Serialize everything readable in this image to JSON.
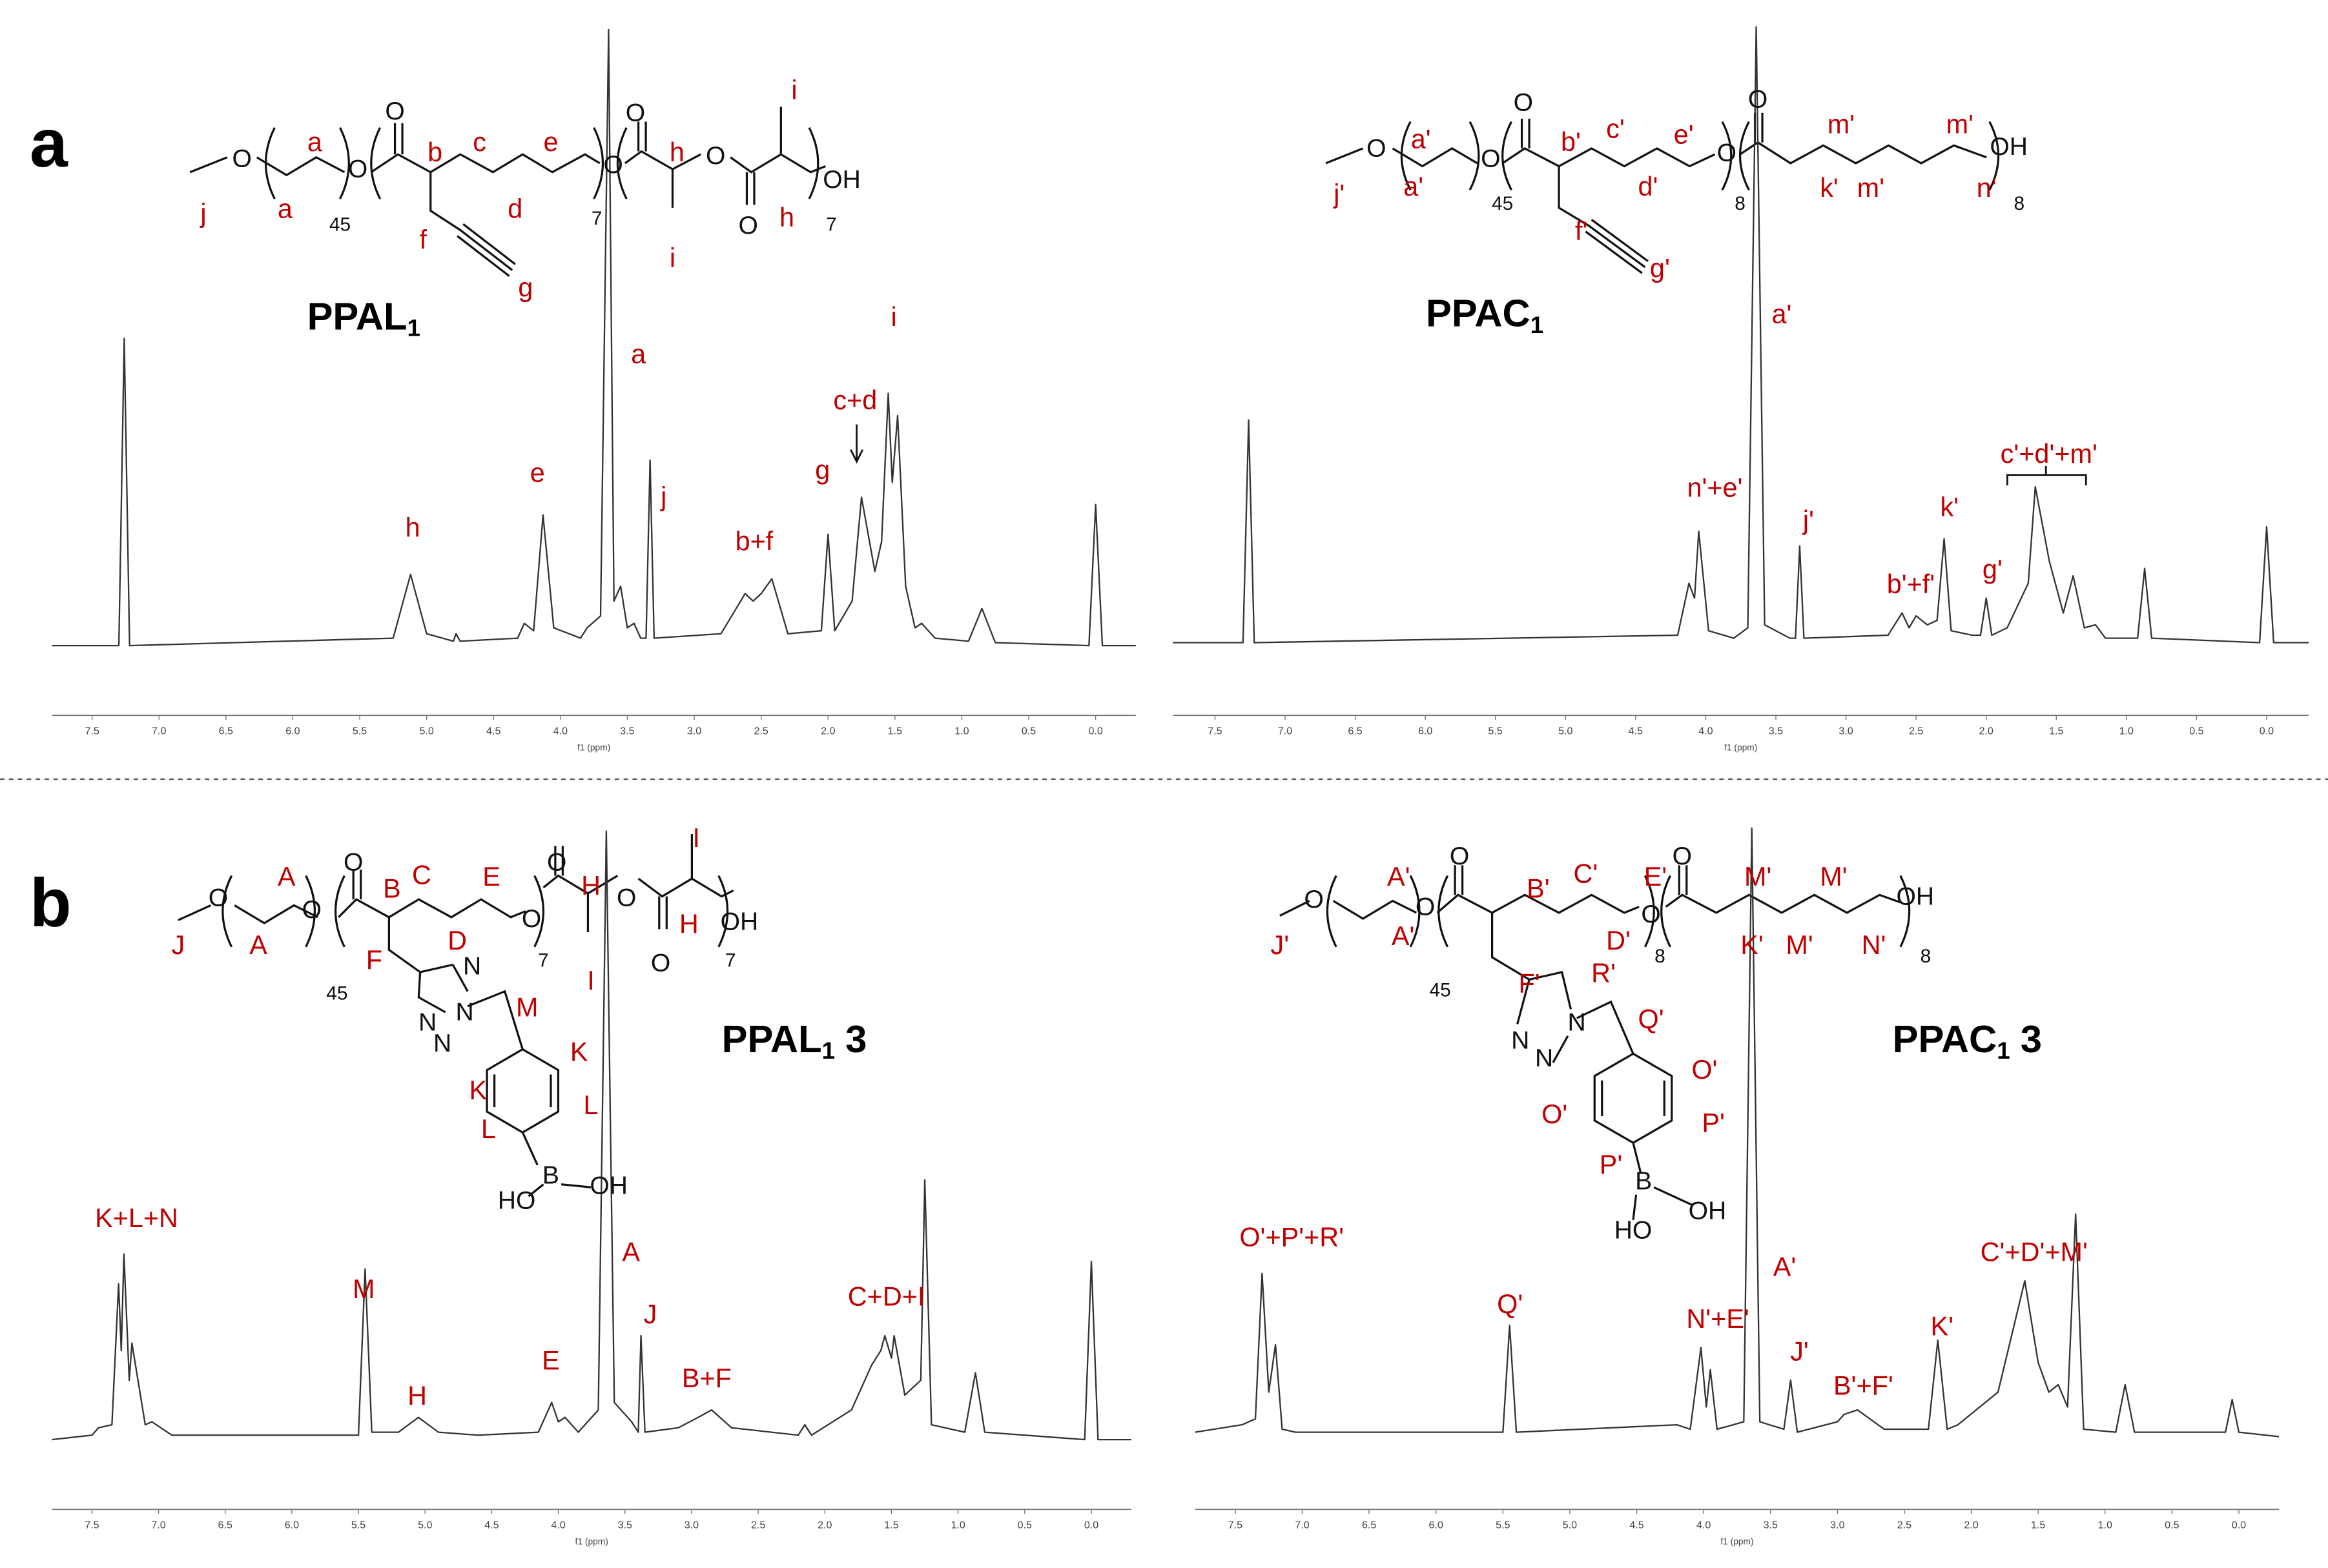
{
  "chart_data": [
    {
      "type": "line",
      "panel": "a",
      "compound": {
        "name": "PPAL",
        "subscript": "1"
      },
      "xlabel": "f1 (ppm)",
      "xlim": [
        7.8,
        -0.3
      ],
      "xticks": [
        {
          "value": 7.5,
          "label": "7.5"
        },
        {
          "value": 7,
          "label": "7.0"
        },
        {
          "value": 6.5,
          "label": "6.5"
        },
        {
          "value": 6,
          "label": "6.0"
        },
        {
          "value": 5.5,
          "label": "5.5"
        },
        {
          "value": 5,
          "label": "5.0"
        },
        {
          "value": 4.5,
          "label": "4.5"
        },
        {
          "value": 4,
          "label": "4.0"
        },
        {
          "value": 3.5,
          "label": "3.5"
        },
        {
          "value": 3,
          "label": "3.0"
        },
        {
          "value": 2.5,
          "label": "2.5"
        },
        {
          "value": 2,
          "label": "2.0"
        },
        {
          "value": 1.5,
          "label": "1.5"
        },
        {
          "value": 1,
          "label": "1.0"
        },
        {
          "value": 0.5,
          "label": "0.5"
        },
        {
          "value": 0,
          "label": "0.0"
        }
      ],
      "color": "#333333",
      "label_color": "#c00000",
      "x": [
        7.8,
        7.3,
        7.26,
        7.22,
        5.25,
        5.12,
        5.0,
        4.8,
        4.78,
        4.75,
        4.32,
        4.27,
        4.2,
        4.13,
        4.05,
        3.85,
        3.8,
        3.7,
        3.64,
        3.6,
        3.55,
        3.5,
        3.45,
        3.4,
        3.36,
        3.33,
        3.3,
        2.8,
        2.62,
        2.56,
        2.5,
        2.42,
        2.3,
        2.05,
        2.0,
        1.95,
        1.82,
        1.75,
        1.65,
        1.6,
        1.55,
        1.52,
        1.48,
        1.42,
        1.35,
        1.3,
        1.2,
        0.95,
        0.85,
        0.75,
        0.05,
        0.0,
        -0.05,
        -0.3
      ],
      "values": [
        0,
        0,
        207,
        0,
        5,
        48,
        8,
        3,
        8,
        3,
        5,
        15,
        10,
        88,
        12,
        5,
        12,
        20,
        415,
        30,
        40,
        12,
        15,
        5,
        5,
        125,
        5,
        8,
        35,
        30,
        35,
        45,
        8,
        10,
        75,
        10,
        30,
        100,
        50,
        70,
        170,
        110,
        155,
        40,
        12,
        15,
        5,
        3,
        25,
        2,
        0,
        95,
        0,
        0
      ],
      "structure_labels": [
        "a",
        "a",
        "b",
        "c",
        "d",
        "e",
        "f",
        "g",
        "h",
        "h",
        "i",
        "i",
        "j"
      ],
      "atoms": [
        "O",
        "O",
        "O",
        "45",
        "O",
        "7",
        "O",
        "O",
        "O",
        "OH",
        "7"
      ],
      "peak_labels": [
        "h",
        "e",
        "a",
        "j",
        "b+f",
        "c+d",
        "g",
        "i"
      ]
    },
    {
      "type": "line",
      "compound": {
        "name": "PPAC",
        "subscript": "1"
      },
      "xlabel": "f1 (ppm)",
      "xlim": [
        7.8,
        -0.3
      ],
      "xticks": [
        {
          "value": 7.5,
          "label": "7.5"
        },
        {
          "value": 7,
          "label": "7.0"
        },
        {
          "value": 6.5,
          "label": "6.5"
        },
        {
          "value": 6,
          "label": "6.0"
        },
        {
          "value": 5.5,
          "label": "5.5"
        },
        {
          "value": 5,
          "label": "5.0"
        },
        {
          "value": 4.5,
          "label": "4.5"
        },
        {
          "value": 4,
          "label": "4.0"
        },
        {
          "value": 3.5,
          "label": "3.5"
        },
        {
          "value": 3,
          "label": "3.0"
        },
        {
          "value": 2.5,
          "label": "2.5"
        },
        {
          "value": 2,
          "label": "2.0"
        },
        {
          "value": 1.5,
          "label": "1.5"
        },
        {
          "value": 1,
          "label": "1.0"
        },
        {
          "value": 0.5,
          "label": "0.5"
        },
        {
          "value": 0,
          "label": "0.0"
        }
      ],
      "color": "#333333",
      "label_color": "#c00000",
      "x": [
        7.8,
        7.3,
        7.26,
        7.22,
        4.2,
        4.12,
        4.08,
        4.05,
        3.98,
        3.8,
        3.7,
        3.64,
        3.58,
        3.5,
        3.4,
        3.36,
        3.33,
        3.3,
        2.7,
        2.6,
        2.55,
        2.5,
        2.42,
        2.35,
        2.3,
        2.25,
        2.1,
        2.04,
        2.0,
        1.96,
        1.85,
        1.7,
        1.65,
        1.55,
        1.45,
        1.38,
        1.3,
        1.22,
        1.15,
        0.92,
        0.87,
        0.82,
        0.05,
        0.0,
        -0.05,
        -0.3
      ],
      "values": [
        0,
        0,
        150,
        0,
        5,
        40,
        30,
        75,
        8,
        3,
        10,
        415,
        12,
        8,
        3,
        3,
        65,
        3,
        5,
        20,
        10,
        18,
        12,
        15,
        70,
        8,
        5,
        5,
        30,
        5,
        10,
        40,
        105,
        55,
        20,
        45,
        10,
        12,
        3,
        3,
        50,
        3,
        0,
        78,
        0,
        0
      ],
      "structure_labels": [
        "a'",
        "a'",
        "b'",
        "c'",
        "d'",
        "e'",
        "f'",
        "g'",
        "j'",
        "k'",
        "m'",
        "m'",
        "m'",
        "n'"
      ],
      "atoms": [
        "O",
        "O",
        "O",
        "45",
        "O",
        "8",
        "O",
        "OH",
        "8"
      ],
      "peak_labels": [
        "a'",
        "n'+e'",
        "j'",
        "b'+f'",
        "k'",
        "g'",
        "c'+d'+m'"
      ]
    },
    {
      "type": "line",
      "panel": "b",
      "compound": {
        "name": "PPAL",
        "subscript": "1",
        "suffix": "3"
      },
      "xlabel": "f1 (ppm)",
      "xlim": [
        7.8,
        -0.3
      ],
      "xticks": [
        {
          "value": 7.5,
          "label": "7.5"
        },
        {
          "value": 7,
          "label": "7.0"
        },
        {
          "value": 6.5,
          "label": "6.5"
        },
        {
          "value": 6,
          "label": "6.0"
        },
        {
          "value": 5.5,
          "label": "5.5"
        },
        {
          "value": 5,
          "label": "5.0"
        },
        {
          "value": 4.5,
          "label": "4.5"
        },
        {
          "value": 4,
          "label": "4.0"
        },
        {
          "value": 3.5,
          "label": "3.5"
        },
        {
          "value": 3,
          "label": "3.0"
        },
        {
          "value": 2.5,
          "label": "2.5"
        },
        {
          "value": 2,
          "label": "2.0"
        },
        {
          "value": 1.5,
          "label": "1.5"
        },
        {
          "value": 1,
          "label": "1.0"
        },
        {
          "value": 0.5,
          "label": "0.5"
        },
        {
          "value": 0,
          "label": "0.0"
        }
      ],
      "color": "#333333",
      "label_color": "#c00000",
      "x": [
        7.8,
        7.5,
        7.45,
        7.35,
        7.3,
        7.28,
        7.26,
        7.22,
        7.2,
        7.1,
        7.05,
        6.9,
        5.5,
        5.45,
        5.4,
        5.2,
        5.05,
        4.9,
        4.6,
        4.15,
        4.05,
        4.0,
        3.95,
        3.85,
        3.7,
        3.64,
        3.58,
        3.45,
        3.4,
        3.38,
        3.35,
        3.1,
        2.95,
        2.85,
        2.7,
        2.2,
        2.15,
        2.1,
        1.8,
        1.65,
        1.58,
        1.55,
        1.5,
        1.48,
        1.4,
        1.28,
        1.25,
        1.2,
        0.95,
        0.87,
        0.8,
        0.05,
        0.0,
        -0.05,
        -0.3
      ],
      "values": [
        0,
        3,
        8,
        10,
        105,
        60,
        125,
        40,
        65,
        10,
        12,
        3,
        3,
        115,
        5,
        5,
        15,
        5,
        3,
        5,
        25,
        12,
        15,
        5,
        20,
        410,
        25,
        12,
        5,
        70,
        5,
        8,
        15,
        20,
        8,
        3,
        10,
        3,
        20,
        50,
        60,
        70,
        55,
        70,
        30,
        40,
        175,
        10,
        5,
        45,
        5,
        0,
        120,
        0,
        0
      ],
      "structure_labels": [
        "A",
        "A",
        "B",
        "C",
        "D",
        "E",
        "F",
        "H",
        "H",
        "I",
        "I",
        "J",
        "M",
        "K",
        "K",
        "L",
        "L"
      ],
      "atoms": [
        "O",
        "O",
        "O",
        "45",
        "O",
        "7",
        "O",
        "O",
        "O",
        "OH",
        "7",
        "N",
        "N",
        "N",
        "N",
        "B",
        "OH",
        "HO"
      ],
      "peak_labels": [
        "K+L+N",
        "M",
        "H",
        "E",
        "A",
        "J",
        "B+F",
        "C+D+I"
      ]
    },
    {
      "type": "line",
      "compound": {
        "name": "PPAC",
        "subscript": "1",
        "suffix": "3"
      },
      "xlabel": "f1 (ppm)",
      "xlim": [
        7.8,
        -0.3
      ],
      "xticks": [
        {
          "value": 7.5,
          "label": "7.5"
        },
        {
          "value": 7,
          "label": "7.0"
        },
        {
          "value": 6.5,
          "label": "6.5"
        },
        {
          "value": 6,
          "label": "6.0"
        },
        {
          "value": 5.5,
          "label": "5.5"
        },
        {
          "value": 5,
          "label": "5.0"
        },
        {
          "value": 4.5,
          "label": "4.5"
        },
        {
          "value": 4,
          "label": "4.0"
        },
        {
          "value": 3.5,
          "label": "3.5"
        },
        {
          "value": 3,
          "label": "3.0"
        },
        {
          "value": 2.5,
          "label": "2.5"
        },
        {
          "value": 2,
          "label": "2.0"
        },
        {
          "value": 1.5,
          "label": "1.5"
        },
        {
          "value": 1,
          "label": "1.0"
        },
        {
          "value": 0.5,
          "label": "0.5"
        },
        {
          "value": 0,
          "label": "0.0"
        }
      ],
      "color": "#333333",
      "label_color": "#c00000",
      "x": [
        7.8,
        7.45,
        7.35,
        7.3,
        7.25,
        7.2,
        7.15,
        7.05,
        5.5,
        5.45,
        5.4,
        4.2,
        4.1,
        4.02,
        3.98,
        3.95,
        3.9,
        3.7,
        3.64,
        3.58,
        3.4,
        3.35,
        3.3,
        3.0,
        2.95,
        2.85,
        2.65,
        2.32,
        2.25,
        2.18,
        2.1,
        1.8,
        1.6,
        1.5,
        1.42,
        1.35,
        1.28,
        1.22,
        1.16,
        0.92,
        0.85,
        0.78,
        0.1,
        0.05,
        0.0,
        -0.3
      ],
      "values": [
        3,
        8,
        12,
        110,
        30,
        62,
        5,
        3,
        3,
        75,
        3,
        8,
        5,
        60,
        20,
        45,
        5,
        10,
        410,
        10,
        5,
        38,
        3,
        10,
        15,
        18,
        5,
        5,
        65,
        5,
        8,
        30,
        105,
        50,
        30,
        35,
        20,
        150,
        5,
        3,
        35,
        3,
        3,
        25,
        3,
        0
      ],
      "structure_labels": [
        "A'",
        "A'",
        "B'",
        "C'",
        "D'",
        "E'",
        "F'",
        "J'",
        "K'",
        "M'",
        "M'",
        "M'",
        "N'",
        "R'",
        "Q'",
        "O'",
        "O'",
        "P'",
        "P'"
      ],
      "atoms": [
        "O",
        "O",
        "O",
        "45",
        "O",
        "8",
        "O",
        "OH",
        "8",
        "N",
        "N",
        "N",
        "B",
        "OH",
        "HO"
      ],
      "peak_labels": [
        "O'+P'+R'",
        "Q'",
        "A'",
        "N'+E'",
        "J'",
        "B'+F'",
        "K'",
        "C'+D'+M'"
      ]
    }
  ]
}
